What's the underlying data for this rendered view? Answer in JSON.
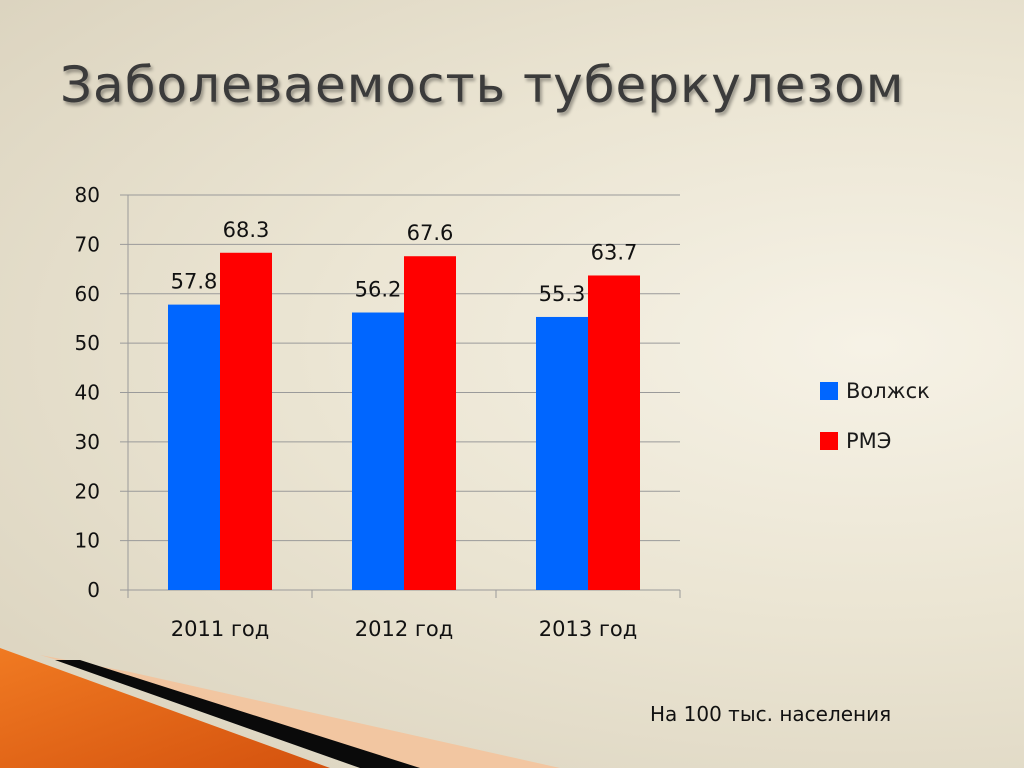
{
  "slide": {
    "title": "Заболеваемость туберкулезом",
    "note": "На 100 тыс. населения"
  },
  "colors": {
    "series_blue": "#0066ff",
    "series_red": "#ff0000",
    "grid": "#9a9a9a",
    "deco_orange": "#e86a1a",
    "deco_black": "#0a0a0a"
  },
  "chart_data": {
    "type": "bar",
    "categories": [
      "2011 год",
      "2012 год",
      "2013 год"
    ],
    "series": [
      {
        "name": "Волжск",
        "color": "#0066ff",
        "values": [
          57.8,
          56.2,
          55.3
        ],
        "labels": [
          "57.8",
          "56.2",
          "55.3"
        ]
      },
      {
        "name": "РМЭ",
        "color": "#ff0000",
        "values": [
          68.3,
          67.6,
          63.7
        ],
        "labels": [
          "68.3",
          "67.6",
          "63.7"
        ]
      }
    ],
    "ylim": [
      0,
      80
    ],
    "yticks": [
      "0",
      "10",
      "20",
      "30",
      "40",
      "50",
      "60",
      "70",
      "80"
    ],
    "grid": true,
    "legend_position": "right"
  }
}
